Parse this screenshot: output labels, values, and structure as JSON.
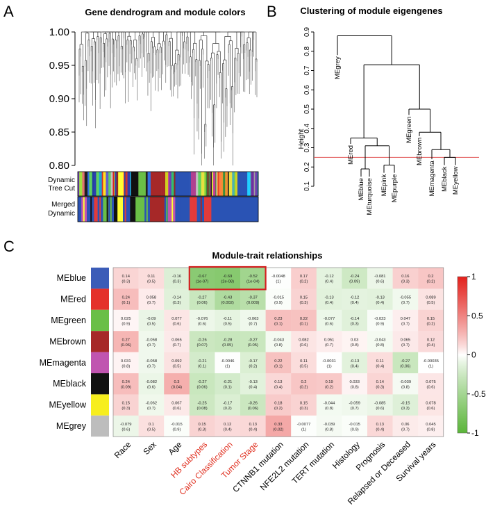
{
  "panels": {
    "a": {
      "letter": "A",
      "title": "Gene dendrogram and module colors",
      "yticks": [
        "1.00",
        "0.95",
        "0.90",
        "0.85",
        "0.80"
      ],
      "yrange": [
        0.8,
        1.0
      ],
      "row_labels": [
        "Dynamic",
        "Tree Cut",
        "Merged",
        "Dynamic"
      ],
      "dynamic_colors": [
        "#2a3fae",
        "#e8e040",
        "#3e8f3a",
        "#c43a9a",
        "#1aa0d8",
        "#8a2a2a",
        "#7040b0",
        "#e07070",
        "#30c070",
        "#d03030",
        "#6060d0",
        "#a0e040",
        "#202020",
        "#f09030",
        "#3070e0",
        "#c0c0c0",
        "#e02020",
        "#50b0b0",
        "#ffe020",
        "#2040a0",
        "#b04090",
        "#60d060",
        "#903030",
        "#4080ff",
        "#d0d020",
        "#00a0a0",
        "#ff8040",
        "#7030a0",
        "#20d0ff",
        "#a0a0a0"
      ],
      "merged_colors": [
        "#2a53b4",
        "#e23b3b",
        "#7030a0",
        "#2a53b4",
        "#111111",
        "#2a53b4",
        "#ffff33",
        "#2a53b4",
        "#6abf47",
        "#2a53b4",
        "#a62828",
        "#2a53b4",
        "#e23b3b",
        "#2a53b4"
      ]
    },
    "b": {
      "letter": "B",
      "title": "Clustering of module eigengenes",
      "ylabel": "Height",
      "yticks": [
        "0.9",
        "0.8",
        "0.7",
        "0.6",
        "0.5",
        "0.4",
        "0.3",
        "0.2",
        "0.1"
      ],
      "yrange": [
        0.1,
        0.9
      ],
      "cut_height": 0.25,
      "leaves": [
        "MEgrey",
        "MEred",
        "MEblue",
        "MEturquoise",
        "MEpink",
        "MEpurple",
        "MEgreen",
        "MEbrown",
        "MEmagenta",
        "MEblack",
        "MEyellow"
      ]
    },
    "c": {
      "letter": "C",
      "title": "Module-trait relationships"
    }
  },
  "chart_data": [
    {
      "type": "dendrogram",
      "title": "Gene dendrogram and module colors",
      "ylim": [
        0.8,
        1.0
      ],
      "yticks": [
        1.0,
        0.95,
        0.9,
        0.85,
        0.8
      ],
      "color_rows": [
        "Dynamic Tree Cut",
        "Merged Dynamic"
      ]
    },
    {
      "type": "dendrogram",
      "title": "Clustering of module eigengenes",
      "ylabel": "Height",
      "ylim": [
        0.1,
        0.9
      ],
      "cut_height": 0.25,
      "leaves": [
        {
          "name": "MEgrey",
          "height": 0.78
        },
        {
          "name": "MEred",
          "height": 0.32
        },
        {
          "name": "MEblue",
          "height": 0.15
        },
        {
          "name": "MEturquoise",
          "height": 0.15
        },
        {
          "name": "MEpink",
          "height": 0.17
        },
        {
          "name": "MEpurple",
          "height": 0.17
        },
        {
          "name": "MEgreen",
          "height": 0.47
        },
        {
          "name": "MEbrown",
          "height": 0.36
        },
        {
          "name": "MEmagenta",
          "height": 0.24
        },
        {
          "name": "MEblack",
          "height": 0.21
        },
        {
          "name": "MEyellow",
          "height": 0.21
        }
      ],
      "merges": [
        {
          "a": "MEblue",
          "b": "MEturquoise",
          "height": 0.19
        },
        {
          "a": "MEpink",
          "b": "MEpurple",
          "height": 0.21
        },
        {
          "a": "MEblue+MEturquoise",
          "b": "MEpink+MEpurple",
          "height": 0.31
        },
        {
          "a": "MEred",
          "b": "blue-purple group",
          "height": 0.35
        },
        {
          "a": "MEblack",
          "b": "MEyellow",
          "height": 0.25
        },
        {
          "a": "MEmagenta",
          "b": "MEblack+MEyellow",
          "height": 0.29
        },
        {
          "a": "MEbrown",
          "b": "magenta group",
          "height": 0.38
        },
        {
          "a": "MEgreen",
          "b": "brown group",
          "height": 0.5
        },
        {
          "a": "red group",
          "b": "green group",
          "height": 0.73
        },
        {
          "a": "MEgrey",
          "b": "all others",
          "height": 0.88
        }
      ]
    },
    {
      "type": "heatmap",
      "title": "Module-trait relationships",
      "rows": [
        "MEblue",
        "MEred",
        "MEgreen",
        "MEbrown",
        "MEmagenta",
        "MEblack",
        "MEyellow",
        "MEgrey"
      ],
      "row_colors": [
        "#3b5cb8",
        "#e4312b",
        "#6abf47",
        "#a62828",
        "#c054b0",
        "#111111",
        "#f7ee1e",
        "#bdbdbd"
      ],
      "columns": [
        "Race",
        "Sex",
        "Age",
        "HB subtypes",
        "Cairo Classification",
        "Tumor Stage",
        "CTNNB1 mutation",
        "NFE2L2 mutation",
        "TERT mutation",
        "Histology",
        "Prognosis",
        "Relapsed or Deceased",
        "Survival years"
      ],
      "highlighted_columns": [
        "HB subtypes",
        "Cairo Classification",
        "Tumor Stage"
      ],
      "values": [
        [
          0.14,
          0.11,
          -0.16,
          -0.67,
          -0.69,
          -0.52,
          -0.0048,
          0.17,
          -0.12,
          -0.24,
          -0.081,
          0.16,
          0.2
        ],
        [
          0.24,
          0.058,
          -0.14,
          -0.27,
          -0.43,
          -0.37,
          -0.015,
          0.15,
          -0.13,
          -0.12,
          -0.13,
          -0.055,
          0.089
        ],
        [
          0.025,
          -0.09,
          0.077,
          -0.076,
          -0.11,
          -0.063,
          0.23,
          0.22,
          -0.077,
          -0.14,
          -0.023,
          0.047,
          0.15
        ],
        [
          0.27,
          -0.058,
          0.065,
          -0.26,
          -0.28,
          -0.27,
          -0.043,
          0.082,
          0.051,
          0.03,
          -0.043,
          0.065,
          0.12
        ],
        [
          0.031,
          -0.058,
          0.092,
          -0.21,
          -0.0046,
          -0.17,
          0.22,
          0.11,
          -0.0031,
          -0.13,
          0.11,
          -0.27,
          -0.00035
        ],
        [
          0.24,
          -0.082,
          0.3,
          -0.27,
          -0.21,
          -0.13,
          0.13,
          0.2,
          0.19,
          0.033,
          0.14,
          -0.039,
          0.075
        ],
        [
          0.15,
          -0.062,
          0.067,
          -0.25,
          -0.17,
          -0.26,
          0.18,
          0.15,
          -0.044,
          -0.059,
          -0.085,
          -0.15,
          0.078
        ],
        [
          -0.079,
          0.1,
          -0.015,
          0.15,
          0.12,
          0.13,
          0.33,
          -0.0077,
          -0.039,
          -0.015,
          0.13,
          0.06,
          0.045
        ]
      ],
      "pvalues": [
        [
          "(0.3)",
          "(0.5)",
          "(0.3)",
          "(1e-07)",
          "(2e-08)",
          "(1e-04)",
          "(1)",
          "(0.2)",
          "(0.4)",
          "(0.09)",
          "(0.6)",
          "(0.3)",
          "(0.2)"
        ],
        [
          "(0.1)",
          "(0.7)",
          "(0.3)",
          "(0.06)",
          "(0.002)",
          "(0.009)",
          "(0.9)",
          "(0.3)",
          "(0.4)",
          "(0.4)",
          "(0.4)",
          "(0.7)",
          "(0.5)"
        ],
        [
          "(0.9)",
          "(0.5)",
          "(0.6)",
          "(0.6)",
          "(0.5)",
          "(0.7)",
          "(0.1)",
          "(0.1)",
          "(0.6)",
          "(0.3)",
          "(0.9)",
          "(0.7)",
          "(0.2)"
        ],
        [
          "(0.06)",
          "(0.7)",
          "(0.7)",
          "(0.07)",
          "(0.05)",
          "(0.05)",
          "(0.8)",
          "(0.6)",
          "(0.7)",
          "(0.8)",
          "(0.8)",
          "(0.7)",
          "(0.4)"
        ],
        [
          "(0.8)",
          "(0.7)",
          "(0.5)",
          "(0.1)",
          "(1)",
          "(0.2)",
          "(0.1)",
          "(0.5)",
          "(1)",
          "(0.4)",
          "(0.4)",
          "(0.06)",
          "(1)"
        ],
        [
          "(0.09)",
          "(0.6)",
          "(0.04)",
          "(0.06)",
          "(0.1)",
          "(0.4)",
          "(0.4)",
          "(0.2)",
          "(0.2)",
          "(0.8)",
          "(0.3)",
          "(0.8)",
          "(0.6)"
        ],
        [
          "(0.3)",
          "(0.7)",
          "(0.6)",
          "(0.08)",
          "(0.2)",
          "(0.06)",
          "(0.2)",
          "(0.3)",
          "(0.8)",
          "(0.7)",
          "(0.6)",
          "(0.3)",
          "(0.6)"
        ],
        [
          "(0.6)",
          "(0.5)",
          "(0.9)",
          "(0.3)",
          "(0.4)",
          "(0.4)",
          "(0.02)",
          "(1)",
          "(0.8)",
          "(0.9)",
          "(0.4)",
          "(0.7)",
          "(0.8)"
        ]
      ],
      "value_labels": [
        [
          "0.14",
          "0.11",
          "-0.16",
          "-0.67",
          "-0.69",
          "-0.52",
          "-0.0048",
          "0.17",
          "-0.12",
          "-0.24",
          "-0.081",
          "0.16",
          "0.2"
        ],
        [
          "0.24",
          "0.058",
          "-0.14",
          "-0.27",
          "-0.43",
          "-0.37",
          "-0.015",
          "0.15",
          "-0.13",
          "-0.12",
          "-0.13",
          "-0.055",
          "0.089"
        ],
        [
          "0.025",
          "-0.09",
          "0.077",
          "-0.076",
          "-0.11",
          "-0.063",
          "0.23",
          "0.22",
          "-0.077",
          "-0.14",
          "-0.023",
          "0.047",
          "0.15"
        ],
        [
          "0.27",
          "-0.058",
          "0.065",
          "-0.26",
          "-0.28",
          "-0.27",
          "-0.043",
          "0.082",
          "0.051",
          "0.03",
          "-0.043",
          "0.065",
          "0.12"
        ],
        [
          "0.031",
          "-0.058",
          "0.092",
          "-0.21",
          "-0.0046",
          "-0.17",
          "0.22",
          "0.11",
          "-0.0031",
          "-0.13",
          "0.11",
          "-0.27",
          "-0.00035"
        ],
        [
          "0.24",
          "-0.082",
          "0.3",
          "-0.27",
          "-0.21",
          "-0.13",
          "0.13",
          "0.2",
          "0.19",
          "0.033",
          "0.14",
          "-0.039",
          "0.075"
        ],
        [
          "0.15",
          "-0.062",
          "0.067",
          "-0.25",
          "-0.17",
          "-0.26",
          "0.18",
          "0.15",
          "-0.044",
          "-0.059",
          "-0.085",
          "-0.15",
          "0.078"
        ],
        [
          "-0.079",
          "0.1",
          "-0.015",
          "0.15",
          "0.12",
          "0.13",
          "0.33",
          "-0.0077",
          "-0.039",
          "-0.015",
          "0.13",
          "0.06",
          "0.045"
        ]
      ],
      "colorbar": {
        "ticks": [
          "1",
          "0.5",
          "0",
          "-0.5",
          "-1"
        ],
        "range": [
          -1,
          1
        ],
        "low_color": "#5bb53a",
        "mid_color": "#ffffff",
        "high_color": "#e3211c"
      }
    }
  ],
  "colors": {
    "cut_line": "#e05050",
    "highlight_box": "#d42020",
    "highlight_label": "#e03020"
  }
}
